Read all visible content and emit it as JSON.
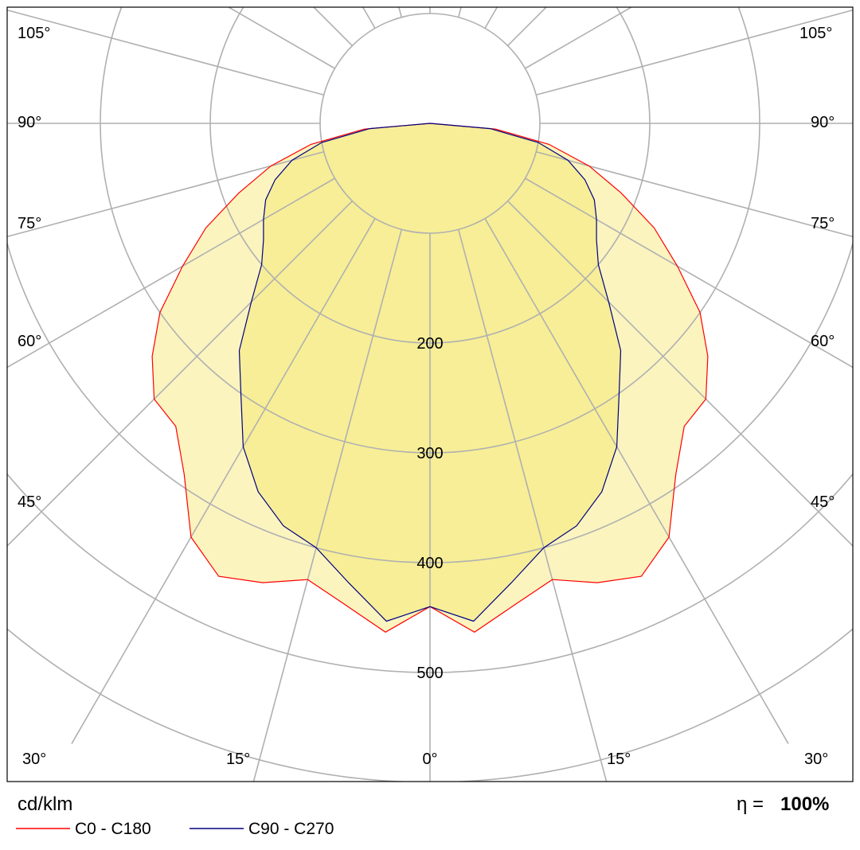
{
  "chart_data": {
    "type": "polar",
    "unit": "cd/klm",
    "efficiency_symbol": "η =",
    "efficiency_value": "100%",
    "angle_labels": {
      "left": [
        "105°",
        "90°",
        "75°",
        "60°",
        "45°",
        "30°",
        "15°"
      ],
      "right": [
        "105°",
        "90°",
        "75°",
        "60°",
        "45°",
        "30°",
        "15°"
      ],
      "center": "0°"
    },
    "rings": [
      100,
      200,
      300,
      400,
      500,
      600
    ],
    "ring_labels": [
      "200",
      "300",
      "400",
      "500"
    ],
    "series": [
      {
        "name": "C0 - C180",
        "color": "#ff0000",
        "angles": [
          0,
          5,
          10,
          15,
          20,
          25,
          30,
          35,
          40,
          45,
          50,
          55,
          60,
          65,
          70,
          75,
          80,
          85,
          90
        ],
        "values": [
          440,
          465,
          445,
          430,
          445,
          455,
          435,
          390,
          360,
          355,
          330,
          300,
          260,
          225,
          185,
          150,
          110,
          60,
          0
        ]
      },
      {
        "name": "C90 - C270",
        "color": "#000080",
        "angles": [
          0,
          5,
          10,
          15,
          20,
          25,
          30,
          35,
          40,
          45,
          50,
          55,
          60,
          65,
          70,
          75,
          80,
          85,
          90
        ],
        "values": [
          440,
          455,
          425,
          400,
          390,
          370,
          340,
          300,
          270,
          230,
          200,
          185,
          175,
          165,
          150,
          130,
          100,
          55,
          0
        ]
      }
    ],
    "legend": [
      {
        "label": "C0 - C180",
        "color": "#ff0000"
      },
      {
        "label": "C90 - C270",
        "color": "#000080"
      }
    ],
    "grid": true,
    "legend_position": "bottom-left",
    "fill_color_outer": "#fbf3b8",
    "fill_color_inner": "#f6ec8a",
    "grid_color": "#b0b0b0"
  }
}
